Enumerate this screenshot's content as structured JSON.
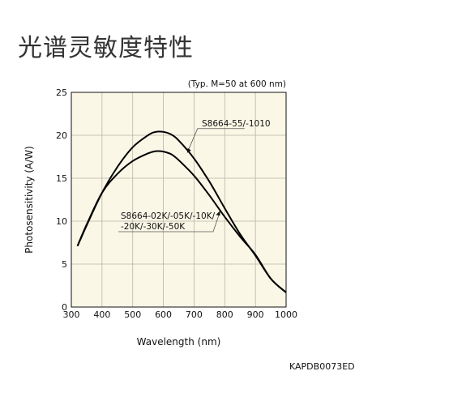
{
  "page": {
    "heading": "光谱灵敏度特性",
    "figure_code": "KAPDB0073ED"
  },
  "chart_data": {
    "type": "line",
    "title": "",
    "condition_note": "(Typ. M=50 at 600 nm)",
    "xlabel": "Wavelength (nm)",
    "ylabel": "Photosensitivity (A/W)",
    "xlim": [
      300,
      1000
    ],
    "ylim": [
      0,
      25
    ],
    "xticks": [
      300,
      400,
      500,
      600,
      700,
      800,
      900,
      1000
    ],
    "yticks": [
      0,
      5,
      10,
      15,
      20,
      25
    ],
    "grid": true,
    "legend": "none",
    "series": [
      {
        "name": "S8664-55/-1010",
        "color": "#000000",
        "x": [
          320,
          350,
          400,
          450,
          500,
          550,
          575,
          600,
          625,
          650,
          700,
          750,
          800,
          850,
          900,
          950,
          1000
        ],
        "y": [
          7.1,
          9.5,
          13.3,
          16.3,
          18.6,
          20.0,
          20.4,
          20.4,
          20.1,
          19.4,
          17.3,
          14.6,
          11.5,
          8.5,
          6.0,
          3.3,
          1.7
        ]
      },
      {
        "name": "S8664-02K/-05K/-10K/ -20K/-30K/-50K",
        "color": "#000000",
        "x": [
          320,
          350,
          400,
          450,
          500,
          550,
          575,
          600,
          625,
          650,
          700,
          750,
          800,
          850,
          900,
          950,
          1000
        ],
        "y": [
          7.1,
          9.6,
          13.3,
          15.5,
          17.0,
          17.9,
          18.15,
          18.1,
          17.8,
          17.1,
          15.3,
          13.0,
          10.5,
          8.2,
          6.1,
          3.3,
          1.7
        ]
      }
    ],
    "annotations": [
      {
        "lines": [
          "S8664-55/-1010"
        ],
        "series_index": 0,
        "points_to": [
          685,
          18.7
        ]
      },
      {
        "lines": [
          "S8664-02K/-05K/-10K/",
          "-20K/-30K/-50K"
        ],
        "series_index": 1,
        "points_to": [
          782,
          11.2
        ]
      }
    ]
  }
}
